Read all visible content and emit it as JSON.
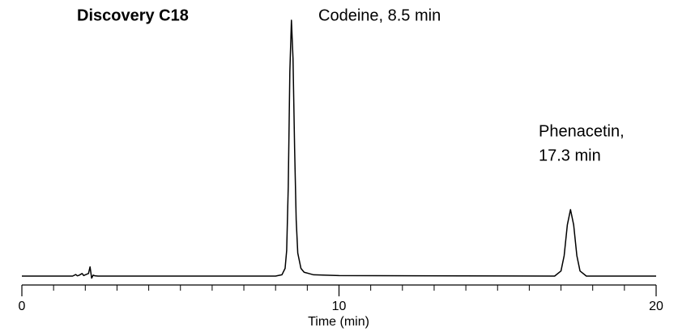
{
  "chart_data": {
    "type": "line",
    "title": "Discovery C18",
    "annotations": [
      "Codeine, 8.5 min",
      "Phenacetin,",
      "17.3 min"
    ],
    "xlabel": "Time (min)",
    "xlim": [
      0,
      20
    ],
    "xticks": [
      0,
      10,
      20
    ],
    "xminorticks": [
      1,
      2,
      3,
      4,
      5,
      6,
      7,
      8,
      9,
      11,
      12,
      13,
      14,
      15,
      16,
      17,
      18,
      19
    ],
    "ylim": [
      0,
      100
    ],
    "series": [
      {
        "color": "#000000",
        "x": [
          0,
          1.6,
          1.7,
          1.75,
          1.8,
          1.9,
          1.95,
          2.0,
          2.1,
          2.15,
          2.2,
          2.25,
          2.3,
          2.4,
          8.0,
          8.2,
          8.3,
          8.35,
          8.4,
          8.45,
          8.5,
          8.55,
          8.6,
          8.65,
          8.7,
          8.8,
          8.9,
          9.2,
          10,
          16.8,
          17.0,
          17.1,
          17.2,
          17.3,
          17.4,
          17.5,
          17.6,
          17.8,
          20
        ],
        "values": [
          0,
          0,
          0.6,
          0.1,
          0.3,
          1.0,
          0.2,
          0.5,
          1.0,
          3.6,
          -0.8,
          0.4,
          0.1,
          0,
          0,
          0.5,
          3,
          10,
          35,
          80,
          100,
          85,
          50,
          22,
          9,
          3,
          1.5,
          0.5,
          0.2,
          0,
          2,
          8,
          20,
          26,
          20,
          8,
          2,
          0,
          0
        ]
      }
    ]
  }
}
